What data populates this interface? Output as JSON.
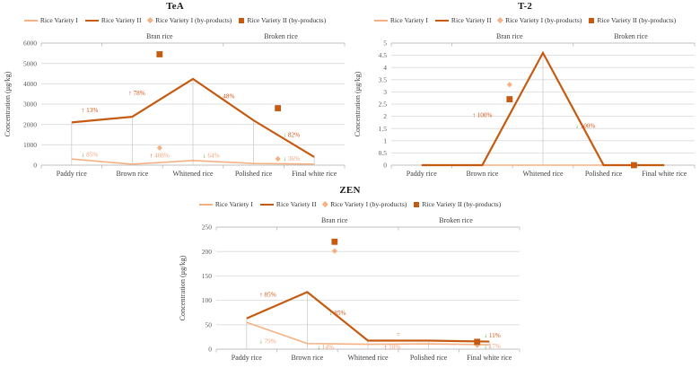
{
  "figure": {
    "background": "#ffffff"
  },
  "colors": {
    "variety_1": "#F4B183",
    "variety_2": "#C55A11",
    "annotation_1": "#F4A582",
    "annotation_2": "#D4551A",
    "up_arrow": "#E83A1E",
    "down_arrow": "#4EA72E",
    "grid_line": "#D9D9D9",
    "axis_line": "#BFBFBF",
    "drop_line": "#CFCDCB",
    "tick_text": "#595959",
    "label_text": "#404040",
    "title_text": "#1a1a1a"
  },
  "chart_data": [
    {
      "type": "line",
      "title": "TeA",
      "ylabel": "Concentration (μg/kg)",
      "ymax": 6000,
      "yticks": [
        0,
        1000,
        2000,
        3000,
        4000,
        5000,
        6000
      ],
      "categories": [
        "Paddy rice",
        "Brown rice",
        "Whitened rice",
        "Polished rice",
        "Final white rice"
      ],
      "sections": [
        {
          "label": "Bran rice",
          "x": 0.39
        },
        {
          "label": "Broken rice",
          "x": 0.79
        }
      ],
      "section_ticks": [
        0,
        0.2,
        0.6,
        1
      ],
      "bottom_ticks": [
        0,
        0.2,
        0.4,
        0.6,
        0.8,
        1
      ],
      "series": [
        {
          "name": "Rice Variety I",
          "variety": 1,
          "values": [
            300,
            45,
            230,
            82,
            53
          ]
        },
        {
          "name": "Rice Variety II",
          "variety": 2,
          "values": [
            2100,
            2380,
            4240,
            2200,
            400
          ]
        }
      ],
      "byproducts": [
        {
          "name": "Rice Variety I (by-products)",
          "variety": 1,
          "marker": "diamond",
          "points": [
            {
              "x": 0.39,
              "value": 850
            },
            {
              "x": 0.78,
              "value": 310
            }
          ]
        },
        {
          "name": "Rice Variety II (by-products)",
          "variety": 2,
          "marker": "square",
          "points": [
            {
              "x": 0.39,
              "value": 5450
            },
            {
              "x": 0.78,
              "value": 2800
            }
          ]
        }
      ],
      "annotations": [
        {
          "x": 0.16,
          "value": 2700,
          "direction": "up",
          "label": "13%",
          "variety": 2
        },
        {
          "x": 0.315,
          "value": 3550,
          "direction": "up",
          "label": "78%",
          "variety": 2
        },
        {
          "x": 0.61,
          "value": 3400,
          "direction": "down",
          "label": "48%",
          "variety": 2
        },
        {
          "x": 0.825,
          "value": 1500,
          "direction": "down",
          "label": "82%",
          "variety": 2
        },
        {
          "x": 0.16,
          "value": 520,
          "direction": "down",
          "label": "85%",
          "variety": 1
        },
        {
          "x": 0.39,
          "value": 470,
          "direction": "up",
          "label": "408%",
          "variety": 1
        },
        {
          "x": 0.56,
          "value": 470,
          "direction": "down",
          "label": "64%",
          "variety": 1
        },
        {
          "x": 0.825,
          "value": 330,
          "direction": "down",
          "label": "36%",
          "variety": 1
        }
      ]
    },
    {
      "type": "line",
      "title": "T-2",
      "ylabel": "Concentration (μg/kg)",
      "ymax": 5,
      "yticks": [
        0,
        0.5,
        1,
        1.5,
        2,
        2.5,
        3,
        3.5,
        4,
        4.5,
        5
      ],
      "categories": [
        "Paddy rice",
        "Brown rice",
        "Whitened rice",
        "Polished rice",
        "Final white rice"
      ],
      "sections": [
        {
          "label": "Bran rice",
          "x": 0.39
        },
        {
          "label": "Broken rice",
          "x": 0.79
        }
      ],
      "section_ticks": [
        0,
        0.2,
        0.6,
        1
      ],
      "bottom_ticks": [
        0,
        0.2,
        0.4,
        0.6,
        0.8,
        1
      ],
      "series": [
        {
          "name": "Rice Variety I",
          "variety": 1,
          "values": [
            0,
            0,
            0,
            0,
            0
          ]
        },
        {
          "name": "Rice Variety II",
          "variety": 2,
          "values": [
            0,
            0,
            4.6,
            0,
            0
          ]
        }
      ],
      "byproducts": [
        {
          "name": "Rice Variety I (by-products)",
          "variety": 1,
          "marker": "diamond",
          "points": [
            {
              "x": 0.39,
              "value": 3.3
            }
          ]
        },
        {
          "name": "Rice Variety II (by-products)",
          "variety": 2,
          "marker": "square",
          "points": [
            {
              "x": 0.39,
              "value": 2.7
            },
            {
              "x": 0.8,
              "value": 0
            }
          ]
        }
      ],
      "annotations": [
        {
          "x": 0.3,
          "value": 2.05,
          "direction": "up",
          "label": "100%",
          "variety": 2
        },
        {
          "x": 0.64,
          "value": 1.62,
          "direction": "down",
          "label": "100%",
          "variety": 2
        }
      ]
    },
    {
      "type": "line",
      "title": "ZEN",
      "ylabel": "Concentration (μg/kg)",
      "ymax": 250,
      "yticks": [
        0,
        50,
        100,
        150,
        200,
        250
      ],
      "categories": [
        "Paddy rice",
        "Brown rice",
        "Whitened rice",
        "Polished rice",
        "Final white rice"
      ],
      "sections": [
        {
          "label": "Bran rice",
          "x": 0.39
        },
        {
          "label": "Broken rice",
          "x": 0.79
        }
      ],
      "section_ticks": [
        0,
        0.2,
        0.6,
        1
      ],
      "bottom_ticks": [
        0,
        0.2,
        0.4,
        0.6,
        0.8,
        1
      ],
      "series": [
        {
          "name": "Rice Variety I",
          "variety": 1,
          "values": [
            55,
            11.5,
            10,
            11,
            9
          ]
        },
        {
          "name": "Rice Variety II",
          "variety": 2,
          "values": [
            63,
            117,
            17.5,
            17.5,
            15.5
          ]
        }
      ],
      "byproducts": [
        {
          "name": "Rice Variety I (by-products)",
          "variety": 1,
          "marker": "diamond",
          "points": [
            {
              "x": 0.39,
              "value": 201
            },
            {
              "x": 0.86,
              "value": 8
            }
          ]
        },
        {
          "name": "Rice Variety II (by-products)",
          "variety": 2,
          "marker": "square",
          "points": [
            {
              "x": 0.39,
              "value": 220
            },
            {
              "x": 0.86,
              "value": 15
            }
          ]
        }
      ],
      "annotations": [
        {
          "x": 0.17,
          "value": 112,
          "direction": "up",
          "label": "85%",
          "variety": 2
        },
        {
          "x": 0.4,
          "value": 74,
          "direction": "down",
          "label": "85%",
          "variety": 2
        },
        {
          "x": 0.6,
          "value": 30,
          "direction": "none",
          "label": "=",
          "variety": 2
        },
        {
          "x": 0.91,
          "value": 28,
          "direction": "down",
          "label": "11%",
          "variety": 2
        },
        {
          "x": 0.17,
          "value": 16,
          "direction": "down",
          "label": "79%",
          "variety": 1
        },
        {
          "x": 0.36,
          "value": 4,
          "direction": "down",
          "label": "14%",
          "variety": 1
        },
        {
          "x": 0.58,
          "value": 4,
          "direction": "up",
          "label": "10%",
          "variety": 1
        },
        {
          "x": 0.91,
          "value": 6,
          "direction": "down",
          "label": "17%",
          "variety": 1
        }
      ]
    }
  ]
}
